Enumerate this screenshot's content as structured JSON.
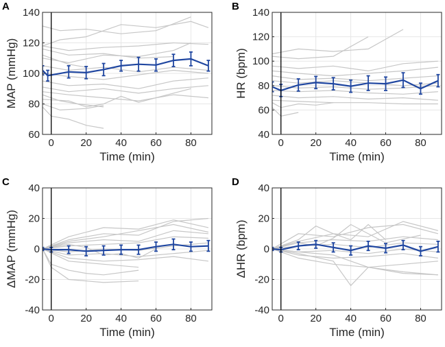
{
  "chart_data": [
    {
      "panel": "A",
      "type": "line",
      "xlabel": "Time (min)",
      "ylabel": "MAP (mmHg)",
      "xlim": [
        -5,
        92
      ],
      "ylim": [
        60,
        140
      ],
      "xticks": [
        0,
        20,
        40,
        60,
        80
      ],
      "yticks": [
        60,
        80,
        100,
        120,
        140
      ],
      "grid": true,
      "marker_x": 0,
      "mean": {
        "x": [
          -5,
          -2,
          10,
          20,
          30,
          40,
          50,
          60,
          70,
          80,
          90
        ],
        "y": [
          102,
          98.5,
          101,
          100.5,
          102.5,
          105,
          106,
          105.5,
          108.5,
          109.5,
          105
        ],
        "err": [
          3,
          3.5,
          4,
          4,
          4,
          3.5,
          4.5,
          4,
          4,
          4.5,
          3.5
        ]
      },
      "individuals": [
        {
          "x": [
            -5,
            5,
            20,
            40,
            60,
            80
          ],
          "y": [
            131,
            128,
            129,
            126,
            128,
            137
          ]
        },
        {
          "x": [
            -5,
            5,
            20,
            40,
            60,
            80,
            90
          ],
          "y": [
            118,
            122,
            124,
            132,
            130,
            134,
            130
          ]
        },
        {
          "x": [
            -5,
            10,
            30,
            50,
            70,
            90
          ],
          "y": [
            118,
            115,
            117,
            118,
            120,
            119
          ]
        },
        {
          "x": [
            -5,
            10,
            30,
            50,
            70
          ],
          "y": [
            116,
            112,
            113,
            110,
            111
          ]
        },
        {
          "x": [
            -5,
            0,
            10,
            20
          ],
          "y": [
            112,
            110,
            106,
            104
          ]
        },
        {
          "x": [
            -5,
            10,
            30,
            50,
            70,
            80
          ],
          "y": [
            110,
            107,
            112,
            111,
            115,
            120
          ]
        },
        {
          "x": [
            -5,
            10,
            30,
            50,
            70,
            90
          ],
          "y": [
            105,
            102,
            104,
            101,
            104,
            102
          ]
        },
        {
          "x": [
            -5,
            10,
            30,
            50,
            70,
            90
          ],
          "y": [
            100,
            98,
            96,
            99,
            102,
            100
          ]
        },
        {
          "x": [
            -5,
            10,
            30,
            50,
            70,
            90
          ],
          "y": [
            95,
            92,
            93,
            90,
            95,
            97
          ]
        },
        {
          "x": [
            -5,
            10,
            30,
            50,
            70,
            90
          ],
          "y": [
            91,
            88,
            90,
            87,
            90,
            92
          ]
        },
        {
          "x": [
            -5,
            10,
            30,
            50,
            70,
            90
          ],
          "y": [
            88,
            86,
            84,
            82,
            86,
            84
          ]
        },
        {
          "x": [
            -5,
            5,
            15,
            30
          ],
          "y": [
            86,
            82,
            80,
            78
          ]
        },
        {
          "x": [
            -5,
            10,
            20,
            30,
            40,
            50,
            60,
            80
          ],
          "y": [
            83,
            82,
            78,
            80,
            85,
            81,
            84,
            90
          ]
        },
        {
          "x": [
            -5,
            5,
            20,
            30
          ],
          "y": [
            80,
            76,
            77,
            79
          ]
        },
        {
          "x": [
            -5,
            0,
            10,
            20,
            30
          ],
          "y": [
            78,
            72,
            70,
            66,
            64
          ]
        }
      ]
    },
    {
      "panel": "B",
      "type": "line",
      "xlabel": "Time (min)",
      "ylabel": "HR (bpm)",
      "xlim": [
        -5,
        92
      ],
      "ylim": [
        40,
        140
      ],
      "xticks": [
        0,
        20,
        40,
        60,
        80
      ],
      "yticks": [
        40,
        60,
        80,
        100,
        120,
        140
      ],
      "grid": true,
      "marker_x": 0,
      "mean": {
        "x": [
          -5,
          0,
          10,
          20,
          30,
          40,
          50,
          60,
          70,
          80,
          90
        ],
        "y": [
          79,
          76,
          80.5,
          82.5,
          81.5,
          79.5,
          82,
          81.5,
          84.5,
          77.5,
          84
        ],
        "err": [
          4,
          5,
          5,
          5,
          5,
          5,
          6,
          5.5,
          6,
          4.5,
          5
        ]
      },
      "individuals": [
        {
          "x": [
            -5,
            10,
            30,
            50,
            70
          ],
          "y": [
            106,
            110,
            108,
            110,
            126
          ]
        },
        {
          "x": [
            -5,
            10,
            30,
            50
          ],
          "y": [
            104,
            102,
            104,
            120
          ]
        },
        {
          "x": [
            -5,
            10,
            30,
            50,
            70,
            90
          ],
          "y": [
            96,
            94,
            96,
            92,
            98,
            100
          ]
        },
        {
          "x": [
            -5,
            10,
            30,
            50,
            70,
            90
          ],
          "y": [
            92,
            90,
            88,
            90,
            92,
            95
          ]
        },
        {
          "x": [
            -5,
            10,
            30,
            50,
            70,
            90
          ],
          "y": [
            88,
            85,
            86,
            84,
            86,
            88
          ]
        },
        {
          "x": [
            -5,
            10,
            30,
            50,
            70,
            90
          ],
          "y": [
            84,
            82,
            84,
            82,
            80,
            82
          ]
        },
        {
          "x": [
            -5,
            10,
            30,
            50,
            70,
            90
          ],
          "y": [
            80,
            78,
            79,
            77,
            78,
            80
          ]
        },
        {
          "x": [
            -5,
            10,
            30,
            50,
            70,
            90
          ],
          "y": [
            76,
            75,
            76,
            74,
            73,
            75
          ]
        },
        {
          "x": [
            -5,
            10,
            30,
            50,
            70,
            90
          ],
          "y": [
            72,
            70,
            71,
            69,
            70,
            68
          ]
        },
        {
          "x": [
            -5,
            10,
            30,
            50,
            70,
            90
          ],
          "y": [
            68,
            67,
            66,
            66,
            65,
            65
          ]
        },
        {
          "x": [
            -5,
            0,
            10,
            20,
            30
          ],
          "y": [
            66,
            62,
            65,
            64,
            66
          ]
        },
        {
          "x": [
            -5,
            0,
            10
          ],
          "y": [
            62,
            55,
            58
          ]
        }
      ]
    },
    {
      "panel": "C",
      "type": "line",
      "xlabel": "Time (min)",
      "ylabel": "ΔMAP (mmHg)",
      "xlim": [
        -5,
        92
      ],
      "ylim": [
        -40,
        40
      ],
      "xticks": [
        0,
        20,
        40,
        60,
        80
      ],
      "yticks": [
        -40,
        -20,
        0,
        20,
        40
      ],
      "grid": true,
      "marker_x": 0,
      "mean": {
        "x": [
          -5,
          0,
          10,
          20,
          30,
          40,
          50,
          60,
          70,
          80,
          90
        ],
        "y": [
          0,
          -0.5,
          -0.5,
          -1.5,
          -1,
          -0.5,
          -0.5,
          1.5,
          3,
          1.5,
          2
        ],
        "err": [
          1,
          1.5,
          2.5,
          3,
          3,
          3,
          3,
          3,
          3.5,
          3,
          3.5
        ]
      },
      "individuals": [
        {
          "x": [
            -5,
            10,
            30,
            50,
            70,
            90
          ],
          "y": [
            0,
            8,
            14,
            13,
            19,
            14
          ]
        },
        {
          "x": [
            -5,
            10,
            30,
            50,
            70,
            90
          ],
          "y": [
            0,
            6,
            10,
            9,
            18,
            20
          ]
        },
        {
          "x": [
            -5,
            10,
            30,
            50,
            70,
            90
          ],
          "y": [
            0,
            5,
            8,
            12,
            16,
            11
          ]
        },
        {
          "x": [
            -5,
            10,
            30,
            50,
            70,
            90
          ],
          "y": [
            0,
            4,
            6,
            5,
            12,
            10
          ]
        },
        {
          "x": [
            -5,
            10,
            30,
            50,
            70,
            90
          ],
          "y": [
            0,
            2,
            3,
            4,
            8,
            7
          ]
        },
        {
          "x": [
            -5,
            10,
            30,
            50,
            70,
            90
          ],
          "y": [
            0,
            -2,
            0,
            -1,
            2,
            4
          ]
        },
        {
          "x": [
            -5,
            10,
            30,
            50,
            70,
            90
          ],
          "y": [
            0,
            -4,
            -3,
            -5,
            -3,
            -1
          ]
        },
        {
          "x": [
            -5,
            10,
            30,
            50,
            70,
            90
          ],
          "y": [
            0,
            -6,
            -8,
            -7,
            -5,
            -8
          ]
        },
        {
          "x": [
            -5,
            0,
            10,
            20,
            30,
            50
          ],
          "y": [
            0,
            -10,
            -14,
            -16,
            -17,
            -14
          ]
        },
        {
          "x": [
            -5,
            0,
            10,
            30,
            50
          ],
          "y": [
            0,
            -12,
            -20,
            -22,
            -21
          ]
        },
        {
          "x": [
            -5,
            10,
            30,
            50
          ],
          "y": [
            0,
            -8,
            -10,
            -12
          ]
        },
        {
          "x": [
            -5,
            10,
            20,
            30,
            40,
            50,
            60
          ],
          "y": [
            0,
            3,
            1,
            -4,
            -3,
            -6,
            0
          ]
        }
      ]
    },
    {
      "panel": "D",
      "type": "line",
      "xlabel": "Time (min)",
      "ylabel": "ΔHR (bpm)",
      "xlim": [
        -5,
        92
      ],
      "ylim": [
        -40,
        40
      ],
      "xticks": [
        0,
        20,
        40,
        60,
        80
      ],
      "yticks": [
        -40,
        -20,
        0,
        20,
        40
      ],
      "grid": true,
      "marker_x": 0,
      "mean": {
        "x": [
          -5,
          0,
          10,
          20,
          30,
          40,
          50,
          60,
          70,
          80,
          90
        ],
        "y": [
          0,
          -0.5,
          2,
          3,
          1,
          -1,
          2,
          0.5,
          2.5,
          -1.5,
          1.5
        ],
        "err": [
          1,
          1.5,
          2.5,
          2.5,
          3,
          3,
          3,
          3,
          3,
          3,
          3.5
        ]
      },
      "individuals": [
        {
          "x": [
            -5,
            10,
            20,
            30,
            40,
            50,
            60
          ],
          "y": [
            0,
            6,
            15,
            10,
            6,
            16,
            6
          ]
        },
        {
          "x": [
            -5,
            10,
            30,
            50,
            70,
            90
          ],
          "y": [
            0,
            10,
            8,
            14,
            16,
            10
          ]
        },
        {
          "x": [
            -5,
            10,
            30,
            50,
            70,
            90
          ],
          "y": [
            0,
            5,
            10,
            8,
            18,
            12
          ]
        },
        {
          "x": [
            -5,
            10,
            30,
            50,
            70,
            90
          ],
          "y": [
            0,
            4,
            6,
            5,
            8,
            6
          ]
        },
        {
          "x": [
            -5,
            10,
            30,
            50,
            70,
            90
          ],
          "y": [
            0,
            2,
            3,
            1,
            4,
            3
          ]
        },
        {
          "x": [
            -5,
            10,
            30,
            50,
            70,
            90
          ],
          "y": [
            0,
            -2,
            -1,
            -3,
            0,
            -2
          ]
        },
        {
          "x": [
            -5,
            10,
            30,
            50,
            70,
            90
          ],
          "y": [
            0,
            -4,
            -6,
            -5,
            -3,
            -6
          ]
        },
        {
          "x": [
            -5,
            10,
            30,
            50,
            70,
            90
          ],
          "y": [
            0,
            -6,
            -10,
            -12,
            -10,
            -8
          ]
        },
        {
          "x": [
            -5,
            10,
            30,
            40,
            50,
            70,
            90
          ],
          "y": [
            0,
            -3,
            -8,
            -24,
            -12,
            -15,
            -17
          ]
        },
        {
          "x": [
            -5,
            10,
            30,
            50,
            70,
            90
          ],
          "y": [
            0,
            -2,
            -4,
            -12,
            -16,
            -17
          ]
        },
        {
          "x": [
            -5,
            10,
            20,
            30,
            40,
            60,
            80
          ],
          "y": [
            0,
            4,
            2,
            7,
            16,
            4,
            9
          ]
        }
      ]
    }
  ],
  "colors": {
    "mean_line": "#1f46a0",
    "individual": "#c6c6c6",
    "grid": "#e6e6e6",
    "axis": "#262626",
    "marker_line": "#000000"
  }
}
